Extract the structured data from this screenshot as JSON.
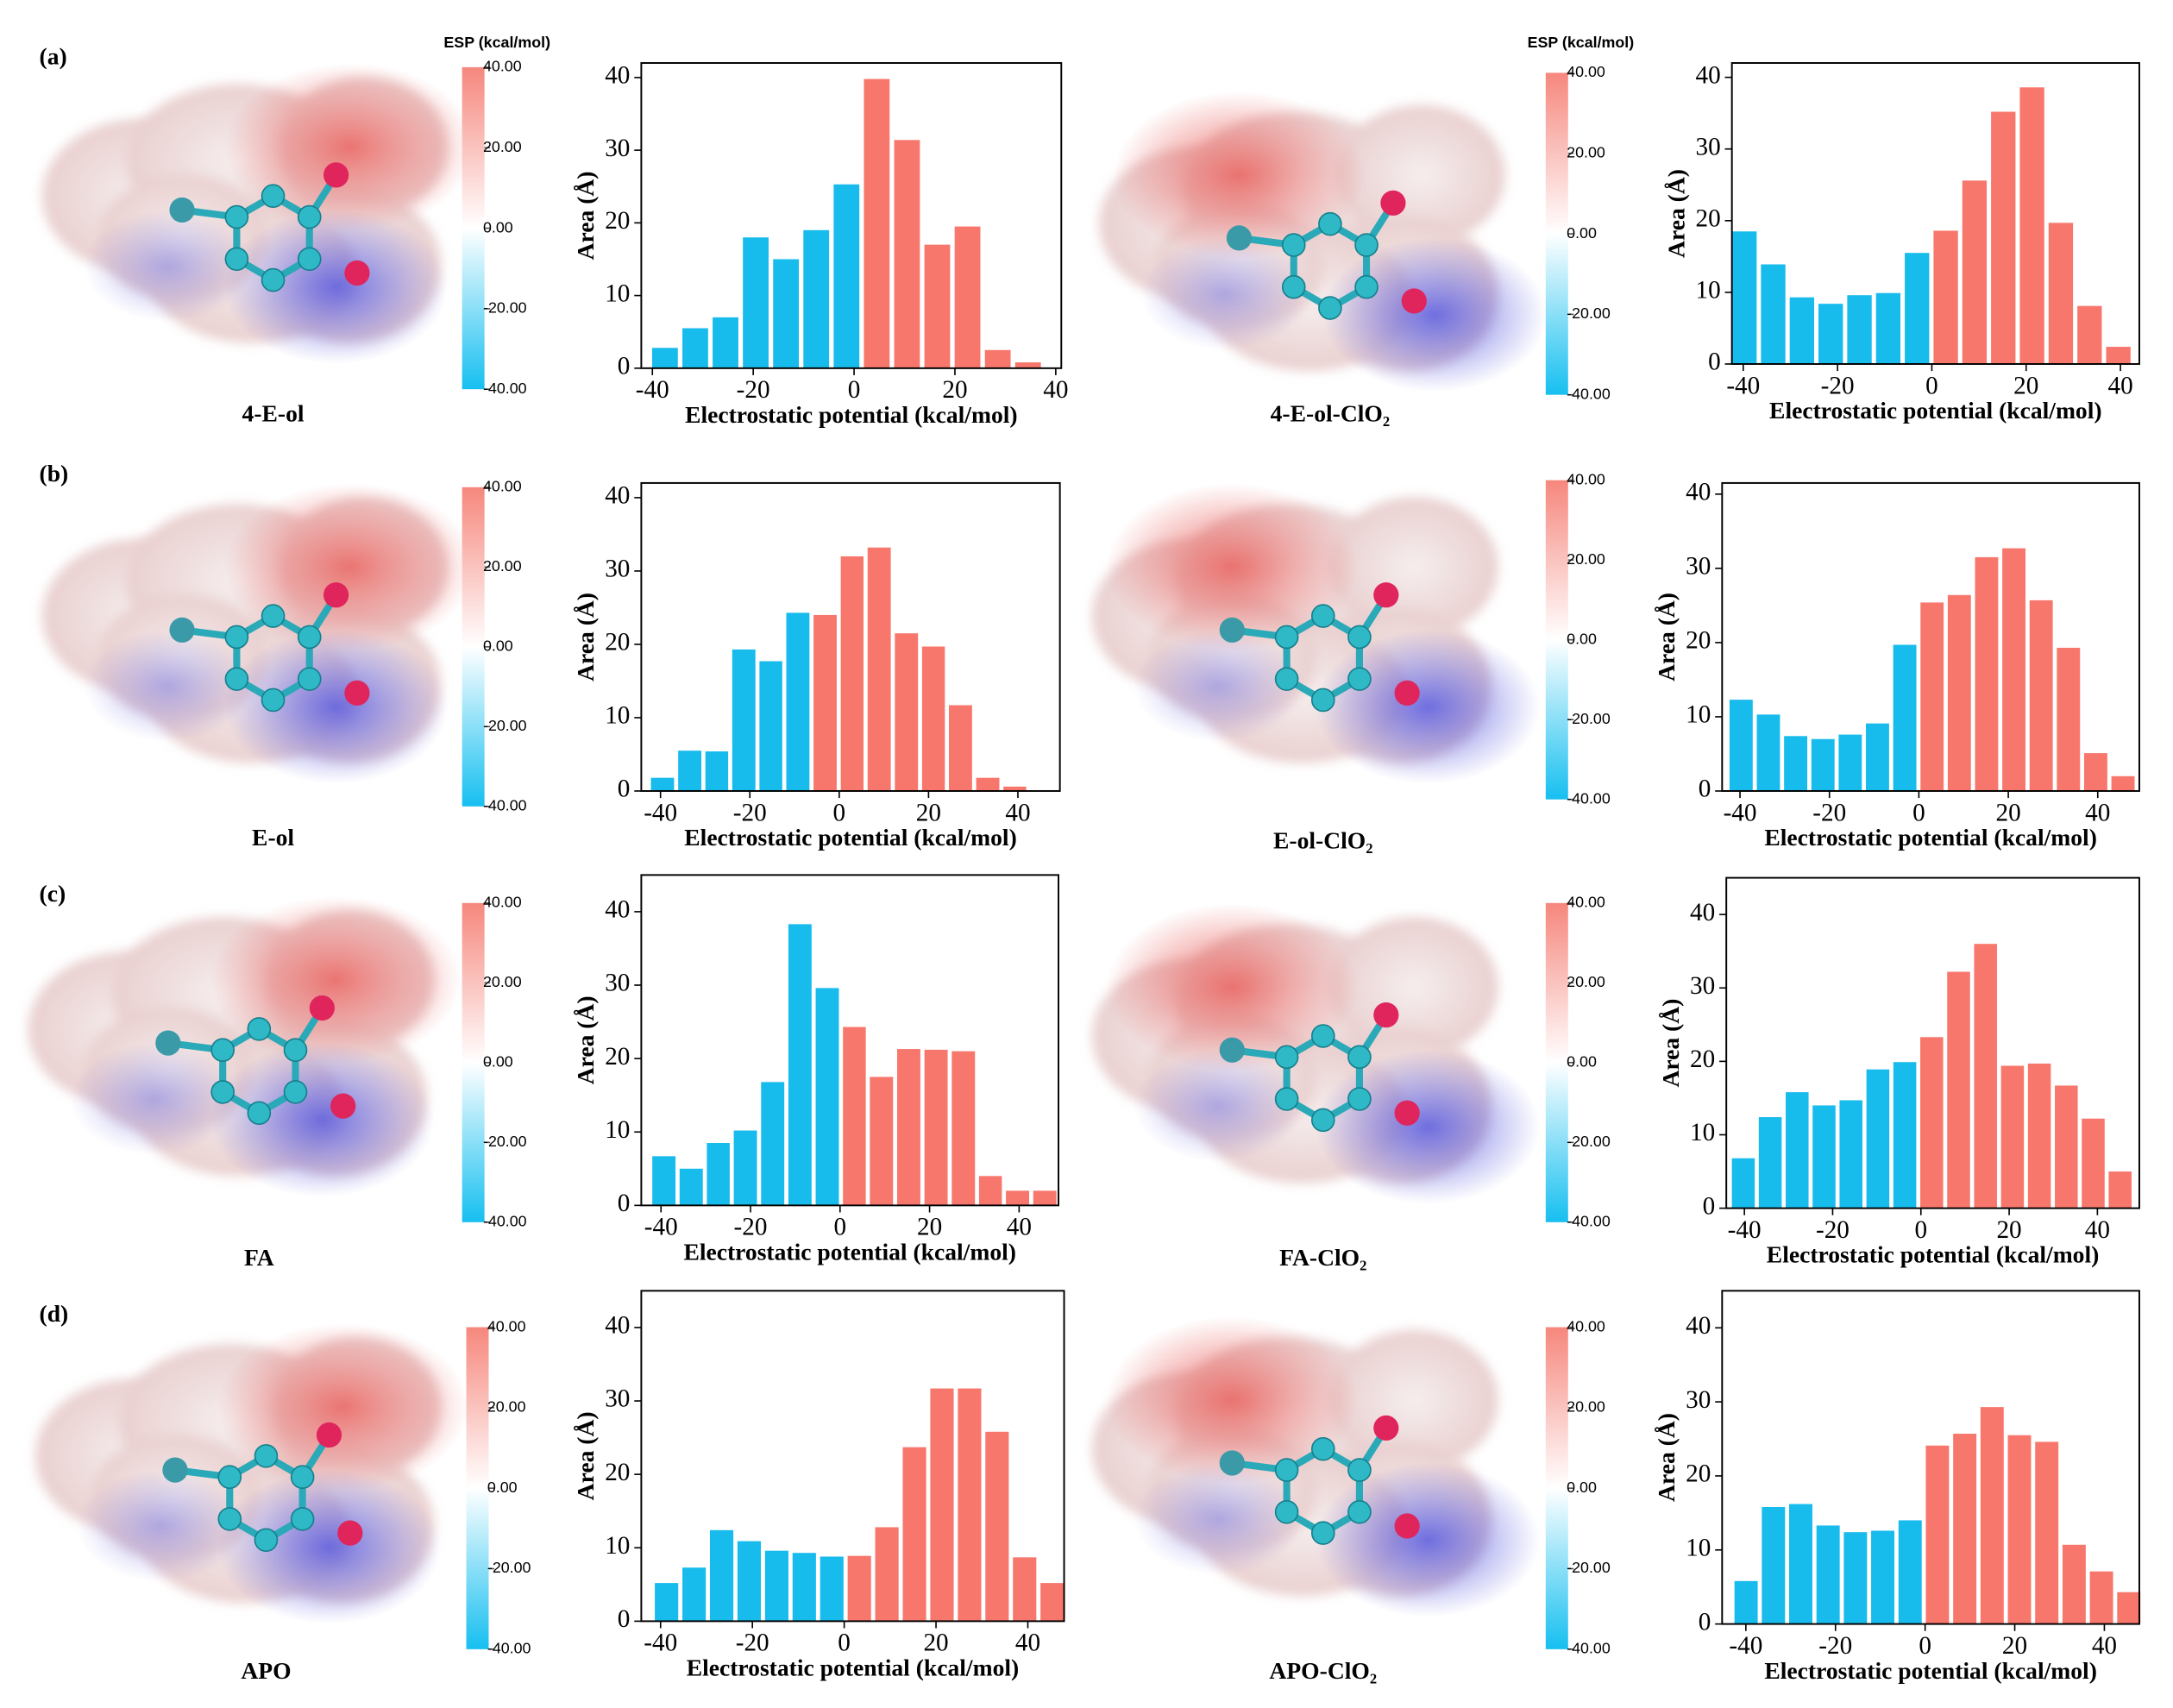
{
  "panel_labels": [
    "(a)",
    "(b)",
    "(c)",
    "(d)"
  ],
  "molecules": [
    {
      "name": "4-E-ol",
      "colorbar": {
        "title": "ESP (kcal/mol)",
        "lim": [
          -40,
          40
        ],
        "colors": [
          "#16bff0",
          "#ffffff",
          "#f6877d"
        ],
        "ticks": [
          {
            "value": 40,
            "label": "40.00"
          },
          {
            "value": 20,
            "label": "20.00"
          },
          {
            "value": 0,
            "label": "0.00"
          },
          {
            "value": -20,
            "label": "-20.00"
          },
          {
            "value": -40,
            "label": "-40.00"
          }
        ]
      }
    },
    {
      "name": "4-E-ol-ClO₂",
      "colorbar": {
        "title": "ESP (kcal/mol)",
        "lim": [
          -40,
          40
        ],
        "colors": [
          "#16bff0",
          "#ffffff",
          "#f6877d"
        ],
        "ticks": [
          {
            "value": 40,
            "label": "40.00"
          },
          {
            "value": 20,
            "label": "20.00"
          },
          {
            "value": 0,
            "label": "0.00"
          },
          {
            "value": -20,
            "label": "-20.00"
          },
          {
            "value": -40,
            "label": "-40.00"
          }
        ]
      }
    },
    {
      "name": "E-ol",
      "colorbar": {
        "lim": [
          -40,
          40
        ],
        "colors": [
          "#16bff0",
          "#ffffff",
          "#f6877d"
        ],
        "ticks": [
          {
            "value": 40,
            "label": "40.00"
          },
          {
            "value": 20,
            "label": "20.00"
          },
          {
            "value": 0,
            "label": "0.00"
          },
          {
            "value": -20,
            "label": "-20.00"
          },
          {
            "value": -40,
            "label": "-40.00"
          }
        ]
      }
    },
    {
      "name": "E-ol-ClO₂",
      "colorbar": {
        "lim": [
          -40,
          40
        ],
        "colors": [
          "#16bff0",
          "#ffffff",
          "#f6877d"
        ],
        "ticks": [
          {
            "value": 40,
            "label": "40.00"
          },
          {
            "value": 20,
            "label": "20.00"
          },
          {
            "value": 0,
            "label": "0.00"
          },
          {
            "value": -20,
            "label": "-20.00"
          },
          {
            "value": -40,
            "label": "-40.00"
          }
        ]
      }
    },
    {
      "name": "FA",
      "colorbar": {
        "lim": [
          -40,
          40
        ],
        "colors": [
          "#16bff0",
          "#ffffff",
          "#f6877d"
        ],
        "ticks": [
          {
            "value": 40,
            "label": "40.00"
          },
          {
            "value": 20,
            "label": "20.00"
          },
          {
            "value": 0,
            "label": "0.00"
          },
          {
            "value": -20,
            "label": "-20.00"
          },
          {
            "value": -40,
            "label": "-40.00"
          }
        ]
      }
    },
    {
      "name": "FA-ClO₂",
      "colorbar": {
        "lim": [
          -40,
          40
        ],
        "colors": [
          "#16bff0",
          "#ffffff",
          "#f6877d"
        ],
        "ticks": [
          {
            "value": 40,
            "label": "40.00"
          },
          {
            "value": 20,
            "label": "20.00"
          },
          {
            "value": 0,
            "label": "0.00"
          },
          {
            "value": -20,
            "label": "-20.00"
          },
          {
            "value": -40,
            "label": "-40.00"
          }
        ]
      }
    },
    {
      "name": "APO",
      "colorbar": {
        "lim": [
          -40,
          40
        ],
        "colors": [
          "#16bff0",
          "#ffffff",
          "#f6877d"
        ],
        "ticks": [
          {
            "value": 40,
            "label": "40.00"
          },
          {
            "value": 20,
            "label": "20.00"
          },
          {
            "value": 0,
            "label": "0.00"
          },
          {
            "value": -20,
            "label": "-20.00"
          },
          {
            "value": -40,
            "label": "-40.00"
          }
        ]
      }
    },
    {
      "name": "APO-ClO₂",
      "colorbar": {
        "lim": [
          -40,
          40
        ],
        "colors": [
          "#16bff0",
          "#ffffff",
          "#f6877d"
        ],
        "ticks": [
          {
            "value": 40,
            "label": "40.00"
          },
          {
            "value": 20,
            "label": "20.00"
          },
          {
            "value": 0,
            "label": "0.00"
          },
          {
            "value": -20,
            "label": "-20.00"
          },
          {
            "value": -40,
            "label": "-40.00"
          }
        ]
      }
    }
  ],
  "chart_data": [
    {
      "type": "histogram",
      "xlabel": "Electrostatic potential (kcal/mol)",
      "ylabel": "Area (Å)",
      "xlim": [
        -42.2,
        41.1
      ],
      "ylim": [
        0,
        42
      ],
      "xticks": [
        -40,
        -20,
        0,
        20,
        40
      ],
      "yticks": [
        0,
        10,
        20,
        30,
        40
      ],
      "bins": [
        -40.5,
        -34.5,
        -28.5,
        -22.5,
        -16.5,
        -10.5,
        -4.5,
        1.5,
        7.5,
        13.5,
        19.5,
        25.5,
        31.5,
        37.5
      ],
      "values": [
        2.8,
        5.5,
        7,
        18,
        15,
        19,
        25.3,
        39.8,
        31.4,
        17,
        19.5,
        2.5,
        0.8
      ],
      "colors": [
        "#17bbec",
        "#17bbec",
        "#17bbec",
        "#17bbec",
        "#17bbec",
        "#17bbec",
        "#17bbec",
        "#f8776c",
        "#f8776c",
        "#f8776c",
        "#f8776c",
        "#f8776c",
        "#f8776c"
      ]
    },
    {
      "type": "histogram",
      "xlabel": "Electrostatic potential (kcal/mol)",
      "ylabel": "Area (Å)",
      "xlim": [
        -42.4,
        44
      ],
      "ylim": [
        0,
        42
      ],
      "xticks": [
        -40,
        -20,
        0,
        20,
        40
      ],
      "yticks": [
        0,
        10,
        20,
        30,
        40
      ],
      "bins": [
        -42.8,
        -36.7,
        -30.6,
        -24.5,
        -18.4,
        -12.3,
        -6.2,
        -0.1,
        6.0,
        12.1,
        18.2,
        24.3,
        30.4,
        36.5,
        42.6
      ],
      "values": [
        18.5,
        13.9,
        9.3,
        8.4,
        9.6,
        9.9,
        15.5,
        18.6,
        25.6,
        35.2,
        38.6,
        19.7,
        8.1,
        2.4
      ],
      "colors": [
        "#17bbec",
        "#17bbec",
        "#17bbec",
        "#17bbec",
        "#17bbec",
        "#17bbec",
        "#17bbec",
        "#f8776c",
        "#f8776c",
        "#f8776c",
        "#f8776c",
        "#f8776c",
        "#f8776c",
        "#f8776c"
      ]
    },
    {
      "type": "histogram",
      "xlabel": "Electrostatic potential (kcal/mol)",
      "ylabel": "Area (Å)",
      "xlim": [
        -44.3,
        49.4
      ],
      "ylim": [
        0,
        42
      ],
      "xticks": [
        -40,
        -20,
        0,
        20,
        40
      ],
      "yticks": [
        0,
        10,
        20,
        30,
        40
      ],
      "bins": [
        -42.6,
        -36.5,
        -30.4,
        -24.4,
        -18.3,
        -12.3,
        -6.2,
        -0.1,
        5.9,
        12.0,
        18.1,
        24.1,
        30.2,
        36.3,
        42.3
      ],
      "values": [
        1.8,
        5.5,
        5.4,
        19.3,
        17.7,
        24.3,
        24,
        32,
        33.2,
        21.5,
        19.7,
        11.7,
        1.8,
        0.6
      ],
      "colors": [
        "#17bbec",
        "#17bbec",
        "#17bbec",
        "#17bbec",
        "#17bbec",
        "#17bbec",
        "#f8776c",
        "#f8776c",
        "#f8776c",
        "#f8776c",
        "#f8776c",
        "#f8776c",
        "#f8776c",
        "#f8776c"
      ]
    },
    {
      "type": "histogram",
      "xlabel": "Electrostatic potential (kcal/mol)",
      "ylabel": "Area (Å)",
      "xlim": [
        -44,
        49.3
      ],
      "ylim": [
        0,
        41.5
      ],
      "xticks": [
        -40,
        -20,
        0,
        20,
        40
      ],
      "yticks": [
        0,
        10,
        20,
        30,
        40
      ],
      "bins": [
        -42.8,
        -36.7,
        -30.6,
        -24.5,
        -18.4,
        -12.3,
        -6.2,
        -0.1,
        6.0,
        12.1,
        18.2,
        24.3,
        30.4,
        36.5,
        42.6,
        48.7
      ],
      "values": [
        12.3,
        10.3,
        7.4,
        7,
        7.6,
        9.1,
        19.7,
        25.4,
        26.4,
        31.5,
        32.7,
        25.7,
        19.3,
        5.1,
        2
      ],
      "colors": [
        "#17bbec",
        "#17bbec",
        "#17bbec",
        "#17bbec",
        "#17bbec",
        "#17bbec",
        "#17bbec",
        "#f8776c",
        "#f8776c",
        "#f8776c",
        "#f8776c",
        "#f8776c",
        "#f8776c",
        "#f8776c",
        "#f8776c"
      ]
    },
    {
      "type": "histogram",
      "xlabel": "Electrostatic potential (kcal/mol)",
      "ylabel": "Area (Å)",
      "xlim": [
        -44.4,
        48.8
      ],
      "ylim": [
        0,
        45
      ],
      "xticks": [
        -40,
        -20,
        0,
        20,
        40
      ],
      "yticks": [
        0,
        10,
        20,
        30,
        40
      ],
      "bins": [
        -42.4,
        -36.3,
        -30.2,
        -24.2,
        -18.1,
        -12.0,
        -5.9,
        0.2,
        6.2,
        12.3,
        18.4,
        24.5,
        30.6,
        36.6,
        42.7,
        48.8
      ],
      "values": [
        6.7,
        5,
        8.5,
        10.2,
        16.8,
        38.3,
        29.6,
        24.3,
        17.5,
        21.3,
        21.2,
        21,
        4,
        2,
        2
      ],
      "colors": [
        "#17bbec",
        "#17bbec",
        "#17bbec",
        "#17bbec",
        "#17bbec",
        "#17bbec",
        "#17bbec",
        "#f8776c",
        "#f8776c",
        "#f8776c",
        "#f8776c",
        "#f8776c",
        "#f8776c",
        "#f8776c",
        "#f8776c"
      ]
    },
    {
      "type": "histogram",
      "xlabel": "Electrostatic potential (kcal/mol)",
      "ylabel": "Area (Å)",
      "xlim": [
        -44.1,
        49.5
      ],
      "ylim": [
        0,
        45
      ],
      "xticks": [
        -40,
        -20,
        0,
        20,
        40
      ],
      "yticks": [
        0,
        10,
        20,
        30,
        40
      ],
      "bins": [
        -43.3,
        -37.2,
        -31.1,
        -25.0,
        -18.9,
        -12.8,
        -6.7,
        -0.6,
        5.5,
        11.6,
        17.7,
        23.8,
        29.9,
        36.0,
        42.1,
        48.2
      ],
      "values": [
        6.8,
        12.4,
        15.8,
        14,
        14.7,
        18.9,
        19.9,
        23.3,
        32.2,
        36,
        19.4,
        19.7,
        16.7,
        12.2,
        5
      ],
      "colors": [
        "#17bbec",
        "#17bbec",
        "#17bbec",
        "#17bbec",
        "#17bbec",
        "#17bbec",
        "#17bbec",
        "#f8776c",
        "#f8776c",
        "#f8776c",
        "#f8776c",
        "#f8776c",
        "#f8776c",
        "#f8776c",
        "#f8776c"
      ]
    },
    {
      "type": "histogram",
      "xlabel": "Electrostatic potential (kcal/mol)",
      "ylabel": "Area (Å)",
      "xlim": [
        -44.2,
        47.9
      ],
      "ylim": [
        0,
        45
      ],
      "xticks": [
        -40,
        -20,
        0,
        20,
        40
      ],
      "yticks": [
        0,
        10,
        20,
        30,
        40
      ],
      "bins": [
        -41.7,
        -35.7,
        -29.7,
        -23.7,
        -17.7,
        -11.7,
        -5.7,
        0.3,
        6.3,
        12.3,
        18.3,
        24.3,
        30.3,
        36.3,
        42.3,
        48.3
      ],
      "values": [
        5.2,
        7.3,
        12.4,
        10.9,
        9.6,
        9.3,
        8.8,
        8.9,
        12.8,
        23.7,
        31.7,
        31.7,
        25.8,
        8.7,
        5.2
      ],
      "colors": [
        "#17bbec",
        "#17bbec",
        "#17bbec",
        "#17bbec",
        "#17bbec",
        "#17bbec",
        "#17bbec",
        "#f8776c",
        "#f8776c",
        "#f8776c",
        "#f8776c",
        "#f8776c",
        "#f8776c",
        "#f8776c",
        "#f8776c"
      ]
    },
    {
      "type": "histogram",
      "xlabel": "Electrostatic potential (kcal/mol)",
      "ylabel": "Area (Å)",
      "xlim": [
        -45.3,
        47.8
      ],
      "ylim": [
        0,
        45
      ],
      "xticks": [
        -40,
        -20,
        0,
        20,
        40
      ],
      "yticks": [
        0,
        10,
        20,
        30,
        40
      ],
      "bins": [
        -43.0,
        -36.9,
        -30.8,
        -24.7,
        -18.6,
        -12.5,
        -6.4,
        -0.3,
        5.8,
        11.9,
        18.0,
        24.1,
        30.2,
        36.3,
        42.4,
        48.5
      ],
      "values": [
        5.8,
        15.8,
        16.2,
        13.3,
        12.4,
        12.6,
        14,
        24.1,
        25.7,
        29.3,
        25.5,
        24.6,
        10.7,
        7.1,
        4.3
      ],
      "colors": [
        "#17bbec",
        "#17bbec",
        "#17bbec",
        "#17bbec",
        "#17bbec",
        "#17bbec",
        "#17bbec",
        "#f8776c",
        "#f8776c",
        "#f8776c",
        "#f8776c",
        "#f8776c",
        "#f8776c",
        "#f8776c",
        "#f8776c"
      ]
    }
  ]
}
